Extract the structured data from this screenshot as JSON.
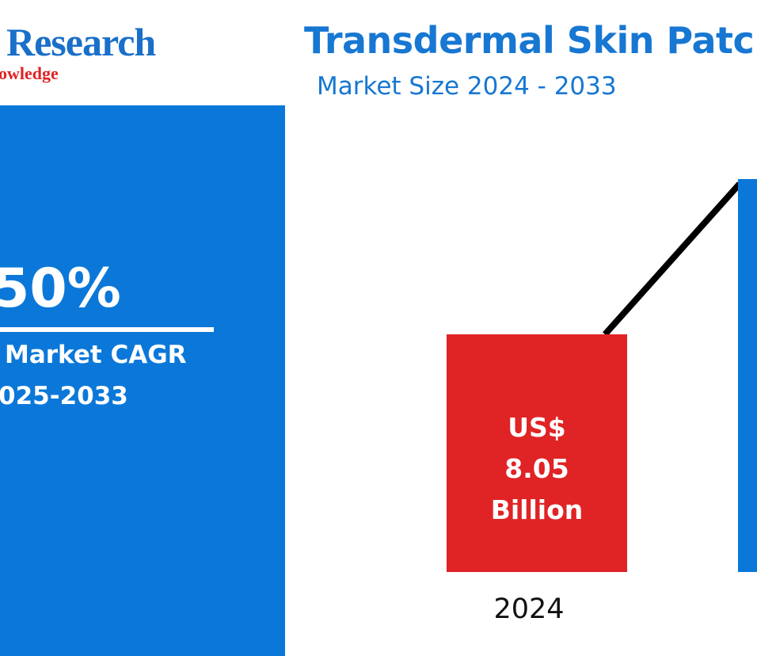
{
  "logo": {
    "name": "Research",
    "tagline": "owledge"
  },
  "cagr": {
    "value": "50%",
    "label_line1": "Market CAGR",
    "label_line2": "025-2033",
    "panel_color": "#0b78d9"
  },
  "colors": {
    "title": "#1777d2",
    "bar_2024": "#e02325",
    "bar_2033": "#0b78d9",
    "trend_line": "#000000"
  },
  "chart_data": {
    "type": "bar",
    "title": "Transdermal Skin Patch",
    "subtitle": "Market Size 2024 - 2033",
    "categories": [
      "2024",
      ""
    ],
    "series": [
      {
        "values": [
          8.05,
          null
        ],
        "data_labels": [
          [
            "US$",
            "8.05",
            "Billion"
          ],
          []
        ]
      }
    ],
    "trend_line": true,
    "grid": false,
    "legend": "none"
  }
}
